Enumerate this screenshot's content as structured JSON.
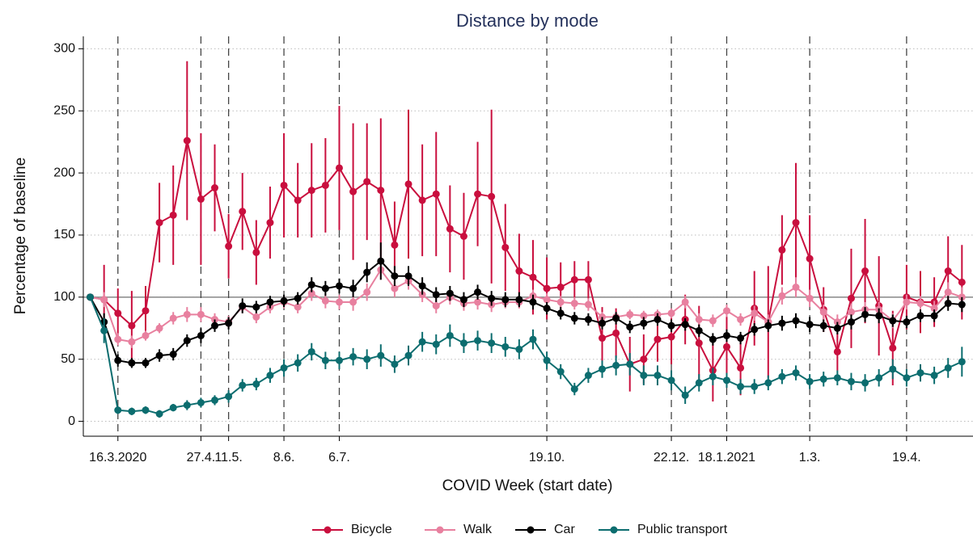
{
  "chart_data": {
    "type": "line",
    "title": "Distance by mode",
    "x_label": "COVID Week (start date)",
    "y_label": "Percentage of baseline",
    "x": [
      0,
      1,
      2,
      3,
      4,
      5,
      6,
      7,
      8,
      9,
      10,
      11,
      12,
      13,
      14,
      15,
      16,
      17,
      18,
      19,
      20,
      21,
      22,
      23,
      24,
      25,
      26,
      27,
      28,
      29,
      30,
      31,
      32,
      33,
      34,
      35,
      36,
      37,
      38,
      39,
      40,
      41,
      42,
      43,
      44,
      45,
      46,
      47,
      48,
      49,
      50,
      51,
      52,
      53,
      54,
      55,
      56,
      57,
      58,
      59,
      60,
      61,
      62,
      63
    ],
    "xlim": [
      -0.5,
      63.8
    ],
    "xticks": [
      {
        "value": 2,
        "label": "16.3.2020"
      },
      {
        "value": 8,
        "label": "27.4."
      },
      {
        "value": 10,
        "label": "11.5."
      },
      {
        "value": 14,
        "label": "8.6."
      },
      {
        "value": 18,
        "label": "6.7."
      },
      {
        "value": 33,
        "label": "19.10."
      },
      {
        "value": 42,
        "label": "22.12."
      },
      {
        "value": 46,
        "label": "18.1.2021"
      },
      {
        "value": 52,
        "label": "1.3."
      },
      {
        "value": 59,
        "label": "19.4."
      }
    ],
    "ylim": [
      -12,
      310
    ],
    "yticks": [
      0,
      50,
      100,
      150,
      200,
      250,
      300
    ],
    "reference_line": 100,
    "grid": true,
    "legend_position": "bottom",
    "series": [
      {
        "name": "Bicycle",
        "color": "#c90f3e",
        "values": [
          100,
          98,
          87,
          77,
          89,
          160,
          166,
          226,
          179,
          188,
          141,
          169,
          136,
          160,
          190,
          178,
          186,
          190,
          204,
          185,
          193,
          186,
          142,
          191,
          178,
          183,
          155,
          149,
          183,
          181,
          140,
          121,
          116,
          107,
          108,
          114,
          114,
          67,
          71,
          46,
          50,
          66,
          68,
          82,
          63,
          41,
          60,
          43,
          91,
          80,
          138,
          160,
          131,
          90,
          56,
          99,
          121,
          93,
          59,
          100,
          96,
          96,
          121,
          112
        ],
        "errors": [
          0,
          28,
          20,
          28,
          20,
          32,
          40,
          64,
          53,
          35,
          26,
          31,
          26,
          29,
          42,
          30,
          38,
          38,
          50,
          55,
          47,
          58,
          35,
          60,
          45,
          50,
          35,
          35,
          42,
          70,
          35,
          30,
          30,
          25,
          20,
          15,
          15,
          25,
          20,
          22,
          20,
          18,
          22,
          20,
          30,
          25,
          30,
          22,
          30,
          45,
          28,
          48,
          35,
          18,
          15,
          40,
          42,
          40,
          30,
          26,
          25,
          20,
          28,
          30
        ]
      },
      {
        "name": "Walk",
        "color": "#e8809f",
        "values": [
          100,
          98,
          66,
          64,
          69,
          75,
          83,
          86,
          86,
          82,
          80,
          92,
          84,
          92,
          96,
          92,
          103,
          97,
          96,
          96,
          104,
          122,
          107,
          113,
          102,
          93,
          100,
          95,
          96,
          94,
          96,
          96,
          101,
          98,
          96,
          95,
          94,
          84,
          84,
          86,
          85,
          86,
          87,
          96,
          82,
          81,
          89,
          82,
          87,
          80,
          101,
          108,
          99,
          88,
          80,
          88,
          90,
          90,
          81,
          96,
          95,
          91,
          104,
          100
        ],
        "errors": [
          0,
          6,
          5,
          5,
          4,
          4,
          5,
          6,
          6,
          5,
          5,
          5,
          5,
          5,
          5,
          5,
          6,
          6,
          6,
          7,
          7,
          8,
          7,
          7,
          6,
          6,
          6,
          6,
          6,
          6,
          5,
          5,
          5,
          5,
          5,
          5,
          5,
          4,
          4,
          4,
          4,
          4,
          4,
          5,
          5,
          5,
          5,
          5,
          6,
          6,
          7,
          8,
          7,
          6,
          6,
          7,
          6,
          6,
          6,
          6,
          6,
          6,
          8,
          8
        ]
      },
      {
        "name": "Car",
        "color": "#000000",
        "values": [
          100,
          80,
          49,
          47,
          47,
          53,
          54,
          65,
          69,
          77,
          79,
          93,
          92,
          96,
          97,
          99,
          110,
          107,
          109,
          107,
          120,
          129,
          117,
          117,
          109,
          102,
          103,
          98,
          104,
          99,
          98,
          98,
          96,
          91,
          87,
          83,
          82,
          79,
          83,
          76,
          79,
          82,
          77,
          78,
          73,
          66,
          69,
          67,
          74,
          77,
          79,
          81,
          78,
          77,
          75,
          80,
          86,
          85,
          81,
          80,
          85,
          85,
          95,
          94
        ],
        "errors": [
          0,
          7,
          5,
          4,
          4,
          5,
          5,
          5,
          6,
          5,
          5,
          6,
          5,
          5,
          5,
          5,
          6,
          6,
          6,
          7,
          8,
          15,
          8,
          8,
          7,
          6,
          6,
          6,
          6,
          6,
          6,
          6,
          6,
          5,
          5,
          5,
          5,
          5,
          5,
          5,
          5,
          5,
          5,
          5,
          5,
          5,
          5,
          5,
          5,
          5,
          6,
          6,
          6,
          5,
          5,
          6,
          6,
          6,
          5,
          5,
          5,
          5,
          6,
          6
        ]
      },
      {
        "name": "Public transport",
        "color": "#0c6d6f",
        "values": [
          100,
          73,
          9,
          8,
          9,
          6,
          11,
          13,
          15,
          17,
          20,
          29,
          30,
          37,
          43,
          47,
          56,
          49,
          49,
          52,
          50,
          53,
          46,
          53,
          64,
          62,
          69,
          63,
          65,
          63,
          60,
          58,
          66,
          49,
          40,
          26,
          37,
          42,
          45,
          46,
          37,
          37,
          33,
          21,
          31,
          36,
          33,
          28,
          28,
          31,
          36,
          39,
          32,
          34,
          35,
          32,
          31,
          35,
          42,
          35,
          39,
          37,
          43,
          48
        ],
        "errors": [
          0,
          10,
          3,
          3,
          3,
          3,
          3,
          4,
          4,
          4,
          5,
          5,
          5,
          6,
          7,
          7,
          7,
          7,
          7,
          7,
          8,
          9,
          7,
          8,
          8,
          8,
          9,
          8,
          8,
          8,
          8,
          8,
          8,
          7,
          6,
          5,
          6,
          7,
          8,
          9,
          8,
          8,
          8,
          7,
          7,
          7,
          6,
          6,
          6,
          6,
          6,
          6,
          6,
          6,
          6,
          7,
          7,
          7,
          8,
          7,
          7,
          7,
          8,
          12
        ]
      }
    ]
  }
}
